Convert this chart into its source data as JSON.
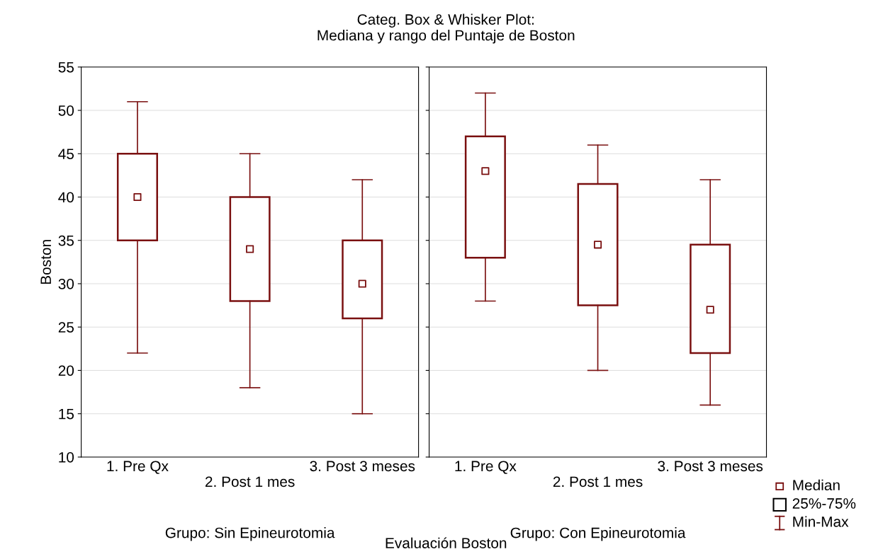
{
  "chart_data": [
    {
      "type": "box",
      "title": "Categ. Box & Whisker Plot:\nMediana y rango del Puntaje de Boston",
      "ylabel": "Boston",
      "xlabel": "Grupo: Sin Epineurotomia",
      "categories": [
        "1. Pre Qx",
        "2. Post 1 mes",
        "3. Post 3 meses"
      ],
      "boxes": [
        {
          "low": 22,
          "q1": 35,
          "median": 40,
          "q3": 45,
          "high": 51
        },
        {
          "low": 18,
          "q1": 28,
          "median": 34,
          "q3": 40,
          "high": 45
        },
        {
          "low": 15,
          "q1": 26,
          "median": 30,
          "q3": 35,
          "high": 42
        }
      ],
      "color": "#7a1010",
      "marker": "square",
      "ylim": [
        10,
        55
      ],
      "yticks": [
        10,
        15,
        20,
        25,
        30,
        35,
        40,
        45,
        50,
        55
      ],
      "grid": "y",
      "annotations": [
        "Evaluación Boston"
      ]
    },
    {
      "type": "box",
      "xlabel": "Grupo: Con Epineurotomia",
      "categories": [
        "1. Pre Qx",
        "2. Post 1 mes",
        "3. Post 3 meses"
      ],
      "boxes": [
        {
          "low": 28,
          "q1": 33,
          "median": 43,
          "q3": 47,
          "high": 52
        },
        {
          "low": 20,
          "q1": 27.5,
          "median": 34.5,
          "q3": 41.5,
          "high": 46
        },
        {
          "low": 16,
          "q1": 22,
          "median": 27,
          "q3": 34.5,
          "high": 42
        }
      ],
      "color": "#7a1010",
      "marker": "square",
      "ylim": [
        10,
        55
      ],
      "yticks": [
        10,
        15,
        20,
        25,
        30,
        35,
        40,
        45,
        50,
        55
      ],
      "grid": "y",
      "tick_labels": "x",
      "annotations": [
        "Median",
        "25%-75%",
        "Min-Max"
      ]
    }
  ]
}
